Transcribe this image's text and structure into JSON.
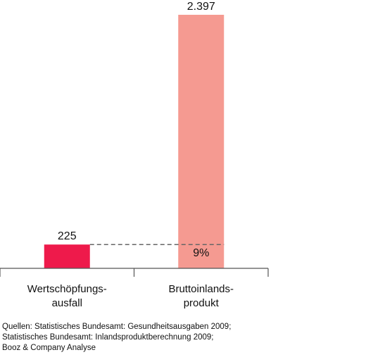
{
  "chart_data": {
    "type": "bar",
    "categories": [
      "Wertschöpfungs-\nausfall",
      "Bruttoinlands-\nprodukt"
    ],
    "values": [
      225,
      2397
    ],
    "value_labels": [
      "225",
      "2.397"
    ],
    "colors": [
      "#ee1a4b",
      "#f59a91"
    ],
    "annotation": "9%",
    "source": [
      "Quellen: Statistisches Bundesamt: Gesundheitsausgaben 2009;",
      "Statistisches Bundesamt: Inlandsproduktberechnung 2009;",
      "Booz & Company Analyse"
    ]
  }
}
